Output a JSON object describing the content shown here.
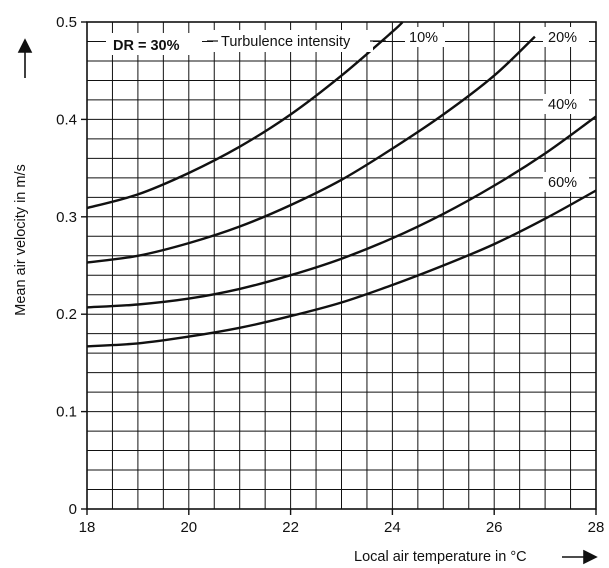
{
  "chart_data": {
    "type": "line",
    "xlabel": "Local air temperature in °C",
    "ylabel": "Mean air velocity in m/s",
    "xlim": [
      18,
      28
    ],
    "ylim": [
      0,
      0.5
    ],
    "x_ticks": [
      "18",
      "20",
      "22",
      "24",
      "26",
      "28"
    ],
    "y_ticks": [
      "0",
      "0.1",
      "0.2",
      "0.3",
      "0.4",
      "0.5"
    ],
    "grid": true,
    "annotation_dr": "DR = 30%",
    "annotation_ti": "Turbulence intensity",
    "series": [
      {
        "name": "10%",
        "x": [
          18,
          19,
          20,
          21,
          22,
          23,
          24,
          24.2
        ],
        "y": [
          0.309,
          0.323,
          0.345,
          0.372,
          0.405,
          0.445,
          0.49,
          0.5
        ]
      },
      {
        "name": "20%",
        "x": [
          18,
          19,
          20,
          21,
          22,
          23,
          24,
          25,
          26,
          26.8
        ],
        "y": [
          0.253,
          0.26,
          0.273,
          0.29,
          0.312,
          0.338,
          0.37,
          0.405,
          0.445,
          0.485
        ]
      },
      {
        "name": "40%",
        "x": [
          18,
          19,
          20,
          21,
          22,
          23,
          24,
          25,
          26,
          27,
          28
        ],
        "y": [
          0.207,
          0.21,
          0.216,
          0.226,
          0.24,
          0.257,
          0.278,
          0.303,
          0.332,
          0.365,
          0.403
        ]
      },
      {
        "name": "60%",
        "x": [
          18,
          19,
          20,
          21,
          22,
          23,
          24,
          25,
          26,
          27,
          28
        ],
        "y": [
          0.167,
          0.17,
          0.177,
          0.186,
          0.198,
          0.212,
          0.23,
          0.25,
          0.272,
          0.298,
          0.327
        ]
      }
    ]
  }
}
